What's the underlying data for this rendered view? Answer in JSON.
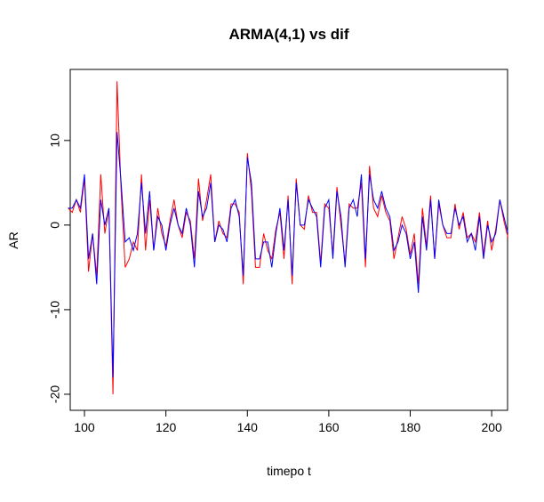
{
  "chart_data": {
    "type": "line",
    "title": "ARMA(4,1) vs dif",
    "x_label": "timepo t",
    "y_label": "AR",
    "x": [
      96,
      97,
      98,
      99,
      100,
      101,
      102,
      103,
      104,
      105,
      106,
      107,
      108,
      109,
      110,
      111,
      112,
      113,
      114,
      115,
      116,
      117,
      118,
      119,
      120,
      121,
      122,
      123,
      124,
      125,
      126,
      127,
      128,
      129,
      130,
      131,
      132,
      133,
      134,
      135,
      136,
      137,
      138,
      139,
      140,
      141,
      142,
      143,
      144,
      145,
      146,
      147,
      148,
      149,
      150,
      151,
      152,
      153,
      154,
      155,
      156,
      157,
      158,
      159,
      160,
      161,
      162,
      163,
      164,
      165,
      166,
      167,
      168,
      169,
      170,
      171,
      172,
      173,
      174,
      175,
      176,
      177,
      178,
      179,
      180,
      181,
      182,
      183,
      184,
      185,
      186,
      187,
      188,
      189,
      190,
      191,
      192,
      193,
      194,
      195,
      196,
      197,
      198,
      199,
      200,
      201,
      202,
      203,
      204
    ],
    "series": [
      {
        "name": "dif",
        "color": "#ff0000",
        "values": [
          2,
          1.5,
          3,
          1.5,
          5.5,
          -5.5,
          -1,
          -6,
          6,
          -1,
          2,
          -20,
          17,
          4,
          -5,
          -4,
          -2,
          -3,
          6,
          -3,
          3,
          -3,
          2,
          -1,
          -2.5,
          0.5,
          3,
          0,
          -1.5,
          1.5,
          0.5,
          -4,
          5.5,
          0.5,
          3,
          6,
          -2,
          0.5,
          -1,
          -1.5,
          2.5,
          2.5,
          1.5,
          -7,
          8.5,
          4,
          -5,
          -5,
          -1,
          -3,
          -4,
          -0.5,
          1.5,
          -4,
          3.5,
          -7,
          5.5,
          0,
          -0.5,
          3.5,
          1.5,
          1.5,
          -4.5,
          2.5,
          2,
          -3.5,
          4.5,
          0,
          -4.5,
          2.5,
          2,
          2,
          5,
          -5,
          7,
          2,
          1,
          3.5,
          1.5,
          0.5,
          -4,
          -1.5,
          1,
          -0.5,
          -3.5,
          -1,
          -7,
          2,
          -2.5,
          3.5,
          -4,
          2.5,
          0,
          -1.5,
          -1.5,
          2.5,
          -0.5,
          1.5,
          -1.5,
          -1,
          -2,
          1.5,
          -3.5,
          0.5,
          -3,
          -0.5,
          3,
          0.5,
          -1.5
        ]
      },
      {
        "name": "ARMA(4,1)",
        "color": "#0000ff",
        "values": [
          2,
          2,
          3,
          2,
          6,
          -4,
          -1,
          -7,
          3,
          0,
          2,
          -18,
          11,
          5,
          -2,
          -1.5,
          -3,
          -1,
          5,
          -1,
          4,
          -3,
          1,
          0,
          -3,
          0,
          2,
          0,
          -1,
          2,
          0,
          -5,
          4,
          1,
          2,
          5,
          -2,
          0,
          -0.5,
          -2,
          2,
          3,
          1,
          -6,
          8,
          5,
          -4,
          -4,
          -2,
          -2,
          -5,
          -1,
          2,
          -3,
          3,
          -6,
          5,
          0,
          0,
          3,
          2,
          1,
          -5,
          2,
          3,
          -4,
          4,
          1,
          -5,
          2,
          3,
          1,
          6,
          -4,
          6,
          3,
          2,
          4,
          2,
          1,
          -3,
          -2,
          0,
          -1,
          -4,
          -2,
          -8,
          1,
          -3,
          3,
          -4,
          3,
          0,
          -1,
          -1,
          2,
          0,
          1,
          -2,
          -1,
          -3,
          1,
          -4,
          0,
          -2,
          -1,
          3,
          1,
          -1
        ]
      }
    ],
    "xlim": [
      96.5,
      203.9
    ],
    "ylim": [
      -21.9,
      18.4
    ],
    "xticks": [
      100,
      120,
      140,
      160,
      180,
      200
    ],
    "yticks": [
      -20,
      -10,
      0,
      10
    ]
  }
}
